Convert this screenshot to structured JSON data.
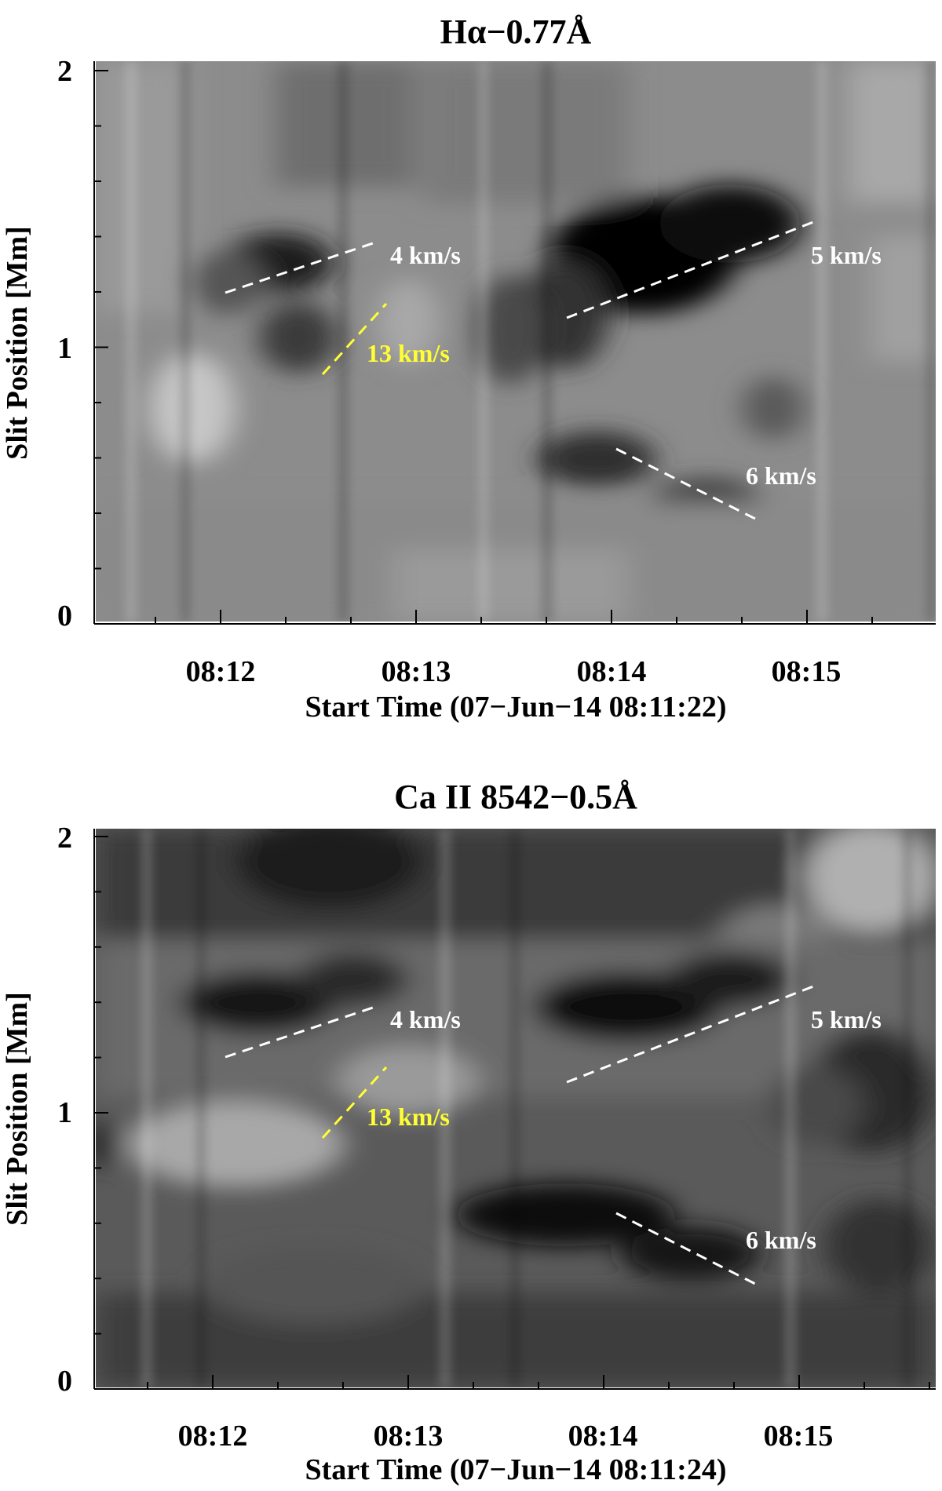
{
  "chart_data": [
    {
      "type": "heatmap",
      "title": "Hα−0.77Å",
      "xlabel": "Start Time (07−Jun−14 08:11:22)",
      "ylabel": "Slit Position [Mm]",
      "x_ticks": [
        "08:12",
        "08:13",
        "08:14",
        "08:15"
      ],
      "y_ticks": [
        "0",
        "1",
        "2"
      ],
      "ylim": [
        0,
        2
      ],
      "colormap": "grayscale",
      "annotations": [
        {
          "label": "4 km/s",
          "color": "#ffffff"
        },
        {
          "label": "13 km/s",
          "color": "#ffff33"
        },
        {
          "label": "5 km/s",
          "color": "#ffffff"
        },
        {
          "label": "6 km/s",
          "color": "#ffffff"
        }
      ]
    },
    {
      "type": "heatmap",
      "title": "Ca II 8542−0.5Å",
      "xlabel": "Start Time (07−Jun−14 08:11:24)",
      "ylabel": "Slit Position [Mm]",
      "x_ticks": [
        "08:12",
        "08:13",
        "08:14",
        "08:15"
      ],
      "y_ticks": [
        "0",
        "1",
        "2"
      ],
      "ylim": [
        0,
        2
      ],
      "colormap": "grayscale",
      "annotations": [
        {
          "label": "4 km/s",
          "color": "#ffffff"
        },
        {
          "label": "13 km/s",
          "color": "#ffff33"
        },
        {
          "label": "5 km/s",
          "color": "#ffffff"
        },
        {
          "label": "6 km/s",
          "color": "#ffffff"
        }
      ]
    }
  ]
}
